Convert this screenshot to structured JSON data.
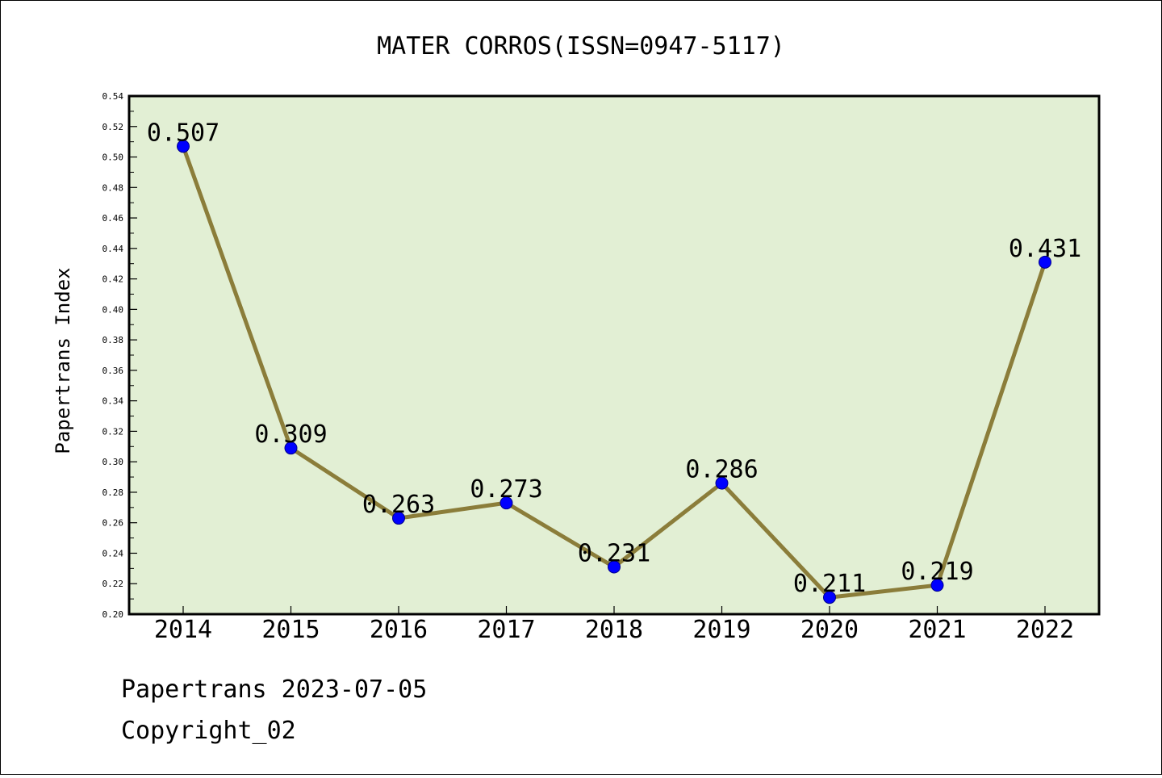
{
  "chart_data": {
    "type": "line",
    "title": "MATER CORROS(ISSN=0947-5117)",
    "xlabel": "",
    "ylabel": "Papertrans Index",
    "categories": [
      "2014",
      "2015",
      "2016",
      "2017",
      "2018",
      "2019",
      "2020",
      "2021",
      "2022"
    ],
    "series": [
      {
        "values": [
          0.507,
          0.309,
          0.263,
          0.273,
          0.231,
          0.286,
          0.211,
          0.219,
          0.431
        ]
      }
    ],
    "data_labels": [
      "0.507",
      "0.309",
      "0.263",
      "0.273",
      "0.231",
      "0.286",
      "0.211",
      "0.219",
      "0.431"
    ],
    "ylim": [
      0.2,
      0.54
    ],
    "yticks": [
      "0.20",
      "0.22",
      "0.24",
      "0.26",
      "0.28",
      "0.30",
      "0.32",
      "0.34",
      "0.36",
      "0.38",
      "0.40",
      "0.42",
      "0.44",
      "0.46",
      "0.48",
      "0.50",
      "0.52",
      "0.54"
    ],
    "grid": false,
    "colors": {
      "plot_background": "#e2efd4",
      "line": "#8b7d3a",
      "marker": "#0000ff"
    }
  },
  "footer": {
    "line1": "Papertrans 2023-07-05",
    "line2": "Copyright_02"
  }
}
